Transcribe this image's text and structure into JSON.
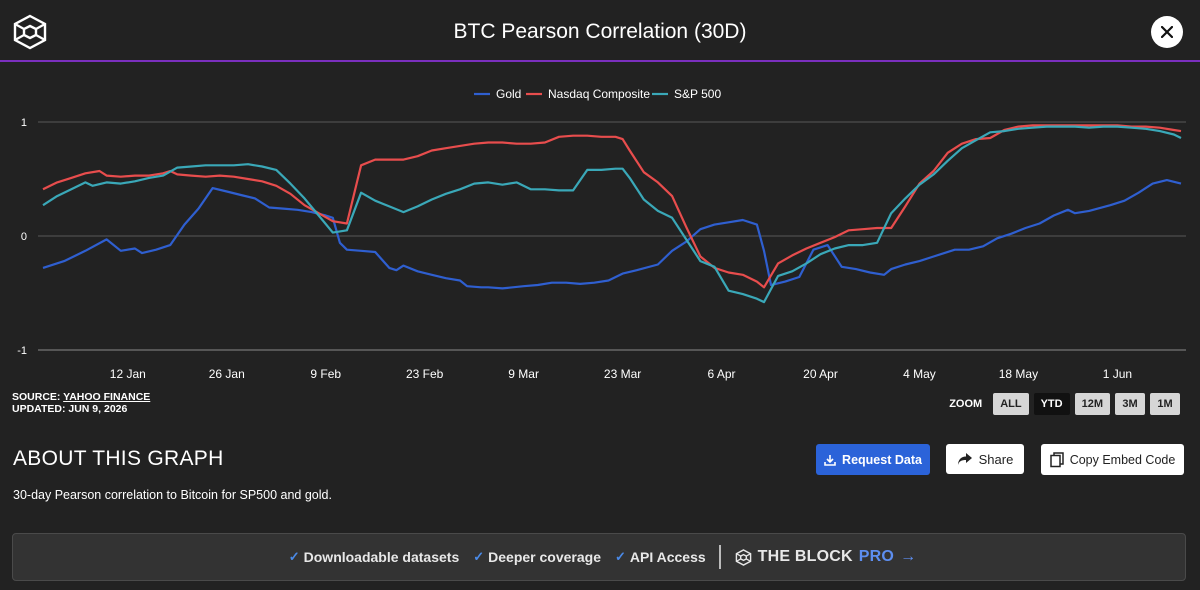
{
  "header": {
    "title": "BTC Pearson Correlation (30D)",
    "logo_icon": "the-block-cube-icon",
    "close_icon": "close-icon"
  },
  "chart_data": {
    "type": "line",
    "title": "BTC Pearson Correlation (30D)",
    "legend_position": "top-center",
    "grid": true,
    "ylim": [
      -1,
      1
    ],
    "y_ticks": [
      "1",
      "0",
      "-1"
    ],
    "x_tick_labels": [
      "12 Jan",
      "26 Jan",
      "9 Feb",
      "23 Feb",
      "9 Mar",
      "23 Mar",
      "6 Apr",
      "20 Apr",
      "4 May",
      "18 May",
      "1 Jun"
    ],
    "x_ticks_day": [
      11,
      25,
      39,
      53,
      67,
      81,
      95,
      109,
      123,
      137,
      151
    ],
    "x_range_day": [
      -1,
      160
    ],
    "series": [
      {
        "name": "Gold",
        "color": "#2f5fd0",
        "points": [
          [
            -1,
            -0.28
          ],
          [
            2,
            -0.22
          ],
          [
            5,
            -0.13
          ],
          [
            8,
            -0.03
          ],
          [
            10,
            -0.13
          ],
          [
            12,
            -0.11
          ],
          [
            13,
            -0.15
          ],
          [
            15,
            -0.12
          ],
          [
            17,
            -0.08
          ],
          [
            19,
            0.1
          ],
          [
            21,
            0.24
          ],
          [
            23,
            0.42
          ],
          [
            25,
            0.39
          ],
          [
            27,
            0.36
          ],
          [
            29,
            0.33
          ],
          [
            31,
            0.25
          ],
          [
            33,
            0.24
          ],
          [
            35,
            0.23
          ],
          [
            37,
            0.21
          ],
          [
            39,
            0.18
          ],
          [
            40,
            0.16
          ],
          [
            41,
            -0.06
          ],
          [
            42,
            -0.12
          ],
          [
            44,
            -0.13
          ],
          [
            46,
            -0.14
          ],
          [
            48,
            -0.28
          ],
          [
            49,
            -0.3
          ],
          [
            50,
            -0.26
          ],
          [
            52,
            -0.31
          ],
          [
            54,
            -0.34
          ],
          [
            56,
            -0.37
          ],
          [
            58,
            -0.39
          ],
          [
            59,
            -0.44
          ],
          [
            61,
            -0.45
          ],
          [
            62,
            -0.45
          ],
          [
            64,
            -0.46
          ],
          [
            67,
            -0.44
          ],
          [
            69,
            -0.43
          ],
          [
            71,
            -0.41
          ],
          [
            73,
            -0.41
          ],
          [
            75,
            -0.42
          ],
          [
            77,
            -0.41
          ],
          [
            79,
            -0.39
          ],
          [
            81,
            -0.33
          ],
          [
            83,
            -0.3
          ],
          [
            86,
            -0.25
          ],
          [
            88,
            -0.13
          ],
          [
            90,
            -0.05
          ],
          [
            92,
            0.06
          ],
          [
            94,
            0.1
          ],
          [
            96,
            0.12
          ],
          [
            98,
            0.14
          ],
          [
            100,
            0.1
          ],
          [
            101,
            -0.13
          ],
          [
            102,
            -0.43
          ],
          [
            104,
            -0.4
          ],
          [
            106,
            -0.36
          ],
          [
            108,
            -0.12
          ],
          [
            110,
            -0.08
          ],
          [
            112,
            -0.27
          ],
          [
            114,
            -0.29
          ],
          [
            116,
            -0.32
          ],
          [
            118,
            -0.34
          ],
          [
            119,
            -0.29
          ],
          [
            121,
            -0.25
          ],
          [
            123,
            -0.22
          ],
          [
            125,
            -0.18
          ],
          [
            128,
            -0.12
          ],
          [
            130,
            -0.12
          ],
          [
            132,
            -0.09
          ],
          [
            134,
            -0.02
          ],
          [
            136,
            0.02
          ],
          [
            138,
            0.07
          ],
          [
            140,
            0.11
          ],
          [
            142,
            0.18
          ],
          [
            144,
            0.23
          ],
          [
            145,
            0.2
          ],
          [
            147,
            0.22
          ],
          [
            150,
            0.27
          ],
          [
            152,
            0.31
          ],
          [
            154,
            0.38
          ],
          [
            156,
            0.46
          ],
          [
            158,
            0.49
          ],
          [
            160,
            0.46
          ]
        ]
      },
      {
        "name": "Nasdaq Composite",
        "color": "#e84d4d",
        "points": [
          [
            -1,
            0.41
          ],
          [
            1,
            0.47
          ],
          [
            3,
            0.51
          ],
          [
            5,
            0.55
          ],
          [
            7,
            0.57
          ],
          [
            8,
            0.53
          ],
          [
            10,
            0.52
          ],
          [
            12,
            0.53
          ],
          [
            14,
            0.53
          ],
          [
            16,
            0.55
          ],
          [
            17,
            0.57
          ],
          [
            18,
            0.54
          ],
          [
            20,
            0.53
          ],
          [
            22,
            0.52
          ],
          [
            24,
            0.53
          ],
          [
            26,
            0.52
          ],
          [
            28,
            0.5
          ],
          [
            30,
            0.48
          ],
          [
            32,
            0.44
          ],
          [
            34,
            0.37
          ],
          [
            36,
            0.27
          ],
          [
            38,
            0.2
          ],
          [
            40,
            0.13
          ],
          [
            42,
            0.11
          ],
          [
            44,
            0.62
          ],
          [
            46,
            0.67
          ],
          [
            48,
            0.67
          ],
          [
            50,
            0.67
          ],
          [
            52,
            0.7
          ],
          [
            54,
            0.75
          ],
          [
            56,
            0.77
          ],
          [
            58,
            0.79
          ],
          [
            60,
            0.81
          ],
          [
            62,
            0.82
          ],
          [
            64,
            0.82
          ],
          [
            66,
            0.81
          ],
          [
            68,
            0.81
          ],
          [
            70,
            0.82
          ],
          [
            72,
            0.87
          ],
          [
            74,
            0.88
          ],
          [
            76,
            0.88
          ],
          [
            78,
            0.87
          ],
          [
            80,
            0.87
          ],
          [
            81,
            0.85
          ],
          [
            82,
            0.75
          ],
          [
            84,
            0.56
          ],
          [
            86,
            0.47
          ],
          [
            88,
            0.35
          ],
          [
            90,
            0.08
          ],
          [
            92,
            -0.18
          ],
          [
            94,
            -0.28
          ],
          [
            96,
            -0.32
          ],
          [
            98,
            -0.34
          ],
          [
            100,
            -0.4
          ],
          [
            101,
            -0.45
          ],
          [
            103,
            -0.24
          ],
          [
            105,
            -0.17
          ],
          [
            107,
            -0.11
          ],
          [
            109,
            -0.06
          ],
          [
            111,
            -0.01
          ],
          [
            113,
            0.05
          ],
          [
            115,
            0.06
          ],
          [
            117,
            0.07
          ],
          [
            119,
            0.07
          ],
          [
            121,
            0.26
          ],
          [
            123,
            0.46
          ],
          [
            125,
            0.57
          ],
          [
            127,
            0.73
          ],
          [
            129,
            0.81
          ],
          [
            131,
            0.85
          ],
          [
            133,
            0.86
          ],
          [
            135,
            0.93
          ],
          [
            137,
            0.96
          ],
          [
            139,
            0.97
          ],
          [
            141,
            0.97
          ],
          [
            143,
            0.97
          ],
          [
            145,
            0.97
          ],
          [
            147,
            0.97
          ],
          [
            149,
            0.97
          ],
          [
            151,
            0.97
          ],
          [
            153,
            0.96
          ],
          [
            155,
            0.96
          ],
          [
            157,
            0.95
          ],
          [
            159,
            0.93
          ],
          [
            160,
            0.92
          ]
        ]
      },
      {
        "name": "S&P 500",
        "color": "#3aa8b8",
        "points": [
          [
            -1,
            0.27
          ],
          [
            1,
            0.35
          ],
          [
            3,
            0.41
          ],
          [
            5,
            0.47
          ],
          [
            6,
            0.44
          ],
          [
            8,
            0.47
          ],
          [
            10,
            0.46
          ],
          [
            12,
            0.48
          ],
          [
            14,
            0.51
          ],
          [
            16,
            0.53
          ],
          [
            18,
            0.6
          ],
          [
            20,
            0.61
          ],
          [
            22,
            0.62
          ],
          [
            24,
            0.62
          ],
          [
            26,
            0.62
          ],
          [
            28,
            0.63
          ],
          [
            30,
            0.61
          ],
          [
            32,
            0.58
          ],
          [
            34,
            0.46
          ],
          [
            36,
            0.33
          ],
          [
            38,
            0.18
          ],
          [
            40,
            0.03
          ],
          [
            42,
            0.05
          ],
          [
            44,
            0.38
          ],
          [
            46,
            0.31
          ],
          [
            48,
            0.26
          ],
          [
            50,
            0.21
          ],
          [
            52,
            0.26
          ],
          [
            54,
            0.32
          ],
          [
            56,
            0.37
          ],
          [
            58,
            0.41
          ],
          [
            60,
            0.46
          ],
          [
            62,
            0.47
          ],
          [
            64,
            0.45
          ],
          [
            66,
            0.47
          ],
          [
            68,
            0.41
          ],
          [
            70,
            0.41
          ],
          [
            72,
            0.4
          ],
          [
            74,
            0.4
          ],
          [
            76,
            0.58
          ],
          [
            78,
            0.58
          ],
          [
            80,
            0.59
          ],
          [
            81,
            0.59
          ],
          [
            82,
            0.51
          ],
          [
            84,
            0.32
          ],
          [
            86,
            0.22
          ],
          [
            88,
            0.16
          ],
          [
            90,
            -0.03
          ],
          [
            92,
            -0.22
          ],
          [
            94,
            -0.27
          ],
          [
            96,
            -0.48
          ],
          [
            98,
            -0.51
          ],
          [
            100,
            -0.55
          ],
          [
            101,
            -0.58
          ],
          [
            103,
            -0.35
          ],
          [
            105,
            -0.31
          ],
          [
            107,
            -0.24
          ],
          [
            109,
            -0.16
          ],
          [
            111,
            -0.11
          ],
          [
            113,
            -0.08
          ],
          [
            115,
            -0.08
          ],
          [
            117,
            -0.06
          ],
          [
            119,
            0.2
          ],
          [
            121,
            0.33
          ],
          [
            123,
            0.45
          ],
          [
            125,
            0.54
          ],
          [
            127,
            0.66
          ],
          [
            129,
            0.77
          ],
          [
            131,
            0.84
          ],
          [
            133,
            0.91
          ],
          [
            135,
            0.92
          ],
          [
            137,
            0.94
          ],
          [
            139,
            0.95
          ],
          [
            141,
            0.96
          ],
          [
            143,
            0.96
          ],
          [
            145,
            0.96
          ],
          [
            147,
            0.95
          ],
          [
            149,
            0.96
          ],
          [
            151,
            0.96
          ],
          [
            153,
            0.95
          ],
          [
            155,
            0.94
          ],
          [
            157,
            0.92
          ],
          [
            159,
            0.89
          ],
          [
            160,
            0.86
          ]
        ]
      }
    ]
  },
  "source": {
    "prefix": "SOURCE: ",
    "name": "YAHOO FINANCE",
    "updated": "UPDATED: JUN 9, 2026"
  },
  "zoom": {
    "label": "ZOOM",
    "options": [
      "ALL",
      "YTD",
      "12M",
      "3M",
      "1M"
    ],
    "selected": "YTD"
  },
  "about": {
    "title": "ABOUT THIS GRAPH",
    "description": "30-day Pearson correlation to Bitcoin for SP500 and gold."
  },
  "actions": {
    "request_label": "Request Data",
    "request_icon": "download-icon",
    "share_label": "Share",
    "share_icon": "share-arrow-icon",
    "embed_label": "Copy Embed Code",
    "embed_icon": "copy-icon"
  },
  "promo": {
    "items": [
      "Downloadable datasets",
      "Deeper coverage",
      "API Access"
    ],
    "brand": "THE BLOCK",
    "brand_pro": "PRO",
    "arrow": "→",
    "check": "✓"
  },
  "colors": {
    "background": "#222222",
    "header_rule": "#7b2fbe",
    "accent_blue": "#2b63d9",
    "grid": "#555555"
  }
}
